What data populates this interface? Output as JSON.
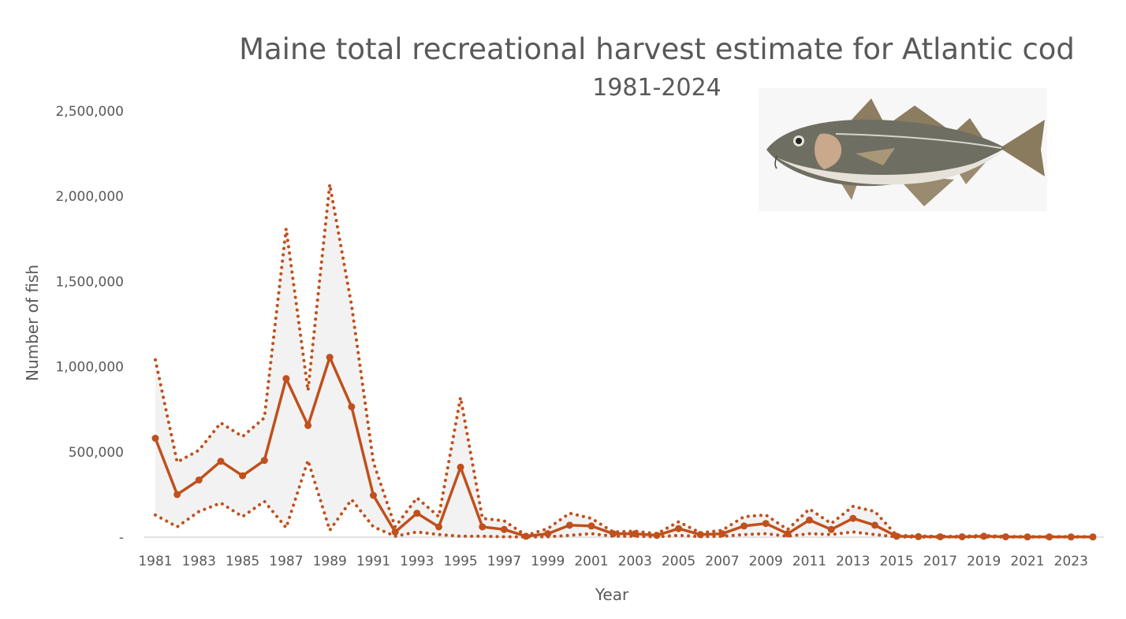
{
  "colors": {
    "series": "#C0501C",
    "band": "#F2F2F2",
    "text": "#595959",
    "axis": "#D9D9D9"
  },
  "chart_data": {
    "type": "line",
    "title": "Maine total recreational harvest estimate for Atlantic cod",
    "subtitle": "1981-2024",
    "xlabel": "Year",
    "ylabel": "Number of fish",
    "ylim": [
      0,
      2500000
    ],
    "y_ticks": [
      0,
      500000,
      1000000,
      1500000,
      2000000,
      2500000
    ],
    "y_tick_labels": [
      "-",
      "500,000",
      "1,000,000",
      "1,500,000",
      "2,000,000",
      "2,500,000"
    ],
    "x_tick_labels": [
      "1981",
      "1983",
      "1985",
      "1987",
      "1989",
      "1991",
      "1993",
      "1995",
      "1997",
      "1999",
      "2001",
      "2003",
      "2005",
      "2007",
      "2009",
      "2011",
      "2013",
      "2015",
      "2017",
      "2019",
      "2021",
      "2023"
    ],
    "x": [
      1981,
      1982,
      1983,
      1984,
      1985,
      1986,
      1987,
      1988,
      1989,
      1990,
      1991,
      1992,
      1993,
      1994,
      1995,
      1996,
      1997,
      1998,
      1999,
      2000,
      2001,
      2002,
      2003,
      2004,
      2005,
      2006,
      2007,
      2008,
      2009,
      2010,
      2011,
      2012,
      2013,
      2014,
      2015,
      2016,
      2017,
      2018,
      2019,
      2020,
      2021,
      2022,
      2023,
      2024
    ],
    "series": [
      {
        "role": "estimate",
        "values": [
          580000,
          250000,
          335000,
          445000,
          360000,
          450000,
          930000,
          655000,
          1055000,
          765000,
          245000,
          30000,
          140000,
          60000,
          410000,
          60000,
          45000,
          5000,
          20000,
          70000,
          65000,
          20000,
          20000,
          10000,
          50000,
          15000,
          20000,
          65000,
          80000,
          20000,
          100000,
          45000,
          110000,
          70000,
          5000,
          3000,
          2000,
          2000,
          5000,
          2000,
          1000,
          1000,
          1000,
          1000
        ]
      },
      {
        "role": "upper",
        "values": [
          1040000,
          440000,
          510000,
          670000,
          590000,
          700000,
          1810000,
          860000,
          2070000,
          1360000,
          440000,
          60000,
          230000,
          120000,
          820000,
          110000,
          95000,
          10000,
          50000,
          140000,
          110000,
          30000,
          35000,
          20000,
          90000,
          25000,
          40000,
          120000,
          130000,
          45000,
          165000,
          80000,
          180000,
          150000,
          10000,
          6000,
          5000,
          4000,
          10000,
          4000,
          3000,
          3000,
          3000,
          3000
        ]
      },
      {
        "role": "lower",
        "values": [
          130000,
          60000,
          150000,
          200000,
          120000,
          210000,
          55000,
          450000,
          40000,
          220000,
          60000,
          5000,
          30000,
          15000,
          5000,
          5000,
          2000,
          1000,
          2000,
          10000,
          20000,
          5000,
          5000,
          2000,
          10000,
          3000,
          5000,
          15000,
          20000,
          5000,
          20000,
          15000,
          30000,
          15000,
          1000,
          500,
          500,
          500,
          1000,
          500,
          300,
          300,
          300,
          300
        ]
      }
    ],
    "grid": false,
    "legend": "none"
  }
}
